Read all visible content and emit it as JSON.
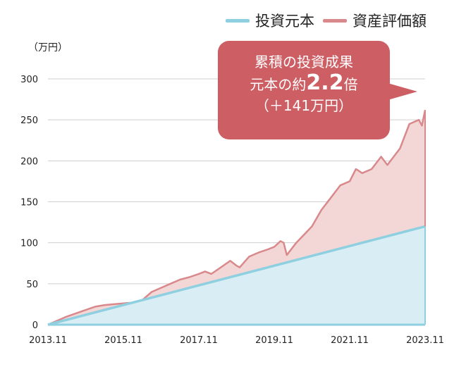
{
  "unit_label": "（万円）",
  "legend": [
    {
      "label": "投資元本",
      "color": "#8ecfe0"
    },
    {
      "label": "資産評価額",
      "color": "#d9898b"
    }
  ],
  "callout": {
    "line1": "累積の投資成果",
    "line2_prefix": "元本の約",
    "line2_number": "2.2",
    "line2_suffix": "倍",
    "line3": "（＋141万円）",
    "color": "#cd5e63"
  },
  "chart_data": {
    "type": "area",
    "x_ticks": [
      "2013.11",
      "2015.11",
      "2017.11",
      "2019.11",
      "2021.11",
      "2023.11"
    ],
    "y_ticks": [
      0,
      50,
      100,
      150,
      200,
      250,
      300
    ],
    "ylim": [
      0,
      300
    ],
    "xlim": [
      "2013.11",
      "2023.11"
    ],
    "grid": true,
    "legend_position": "top-right",
    "series": [
      {
        "name": "投資元本",
        "color": "#8ecfe0",
        "fill": "#d9eef4",
        "x": [
          "2013.11",
          "2023.11"
        ],
        "values": [
          0,
          120
        ]
      },
      {
        "name": "資産評価額",
        "color": "#d9898b",
        "fill": "#f3d7d7",
        "x": [
          "2013.11",
          "2014.5",
          "2014.11",
          "2015.2",
          "2015.5",
          "2015.8",
          "2015.11",
          "2016.2",
          "2016.5",
          "2016.8",
          "2016.11",
          "2017.2",
          "2017.5",
          "2017.8",
          "2017.11",
          "2018.1",
          "2018.3",
          "2018.6",
          "2018.9",
          "2018.11",
          "2018.12",
          "2019.3",
          "2019.6",
          "2019.9",
          "2019.11",
          "2020.1",
          "2020.2",
          "2020.3",
          "2020.6",
          "2020.9",
          "2020.11",
          "2021.2",
          "2021.5",
          "2021.8",
          "2021.11",
          "2022.1",
          "2022.3",
          "2022.6",
          "2022.9",
          "2022.11",
          "2022.12",
          "2023.3",
          "2023.6",
          "2023.9",
          "2023.10",
          "2023.11"
        ],
        "values": [
          0,
          10,
          18,
          22,
          24,
          25,
          26,
          27,
          30,
          40,
          45,
          50,
          55,
          58,
          62,
          65,
          62,
          70,
          78,
          72,
          70,
          83,
          88,
          92,
          95,
          102,
          100,
          85,
          100,
          112,
          120,
          140,
          155,
          170,
          175,
          190,
          185,
          190,
          205,
          195,
          200,
          215,
          245,
          250,
          243,
          262
        ]
      }
    ]
  }
}
